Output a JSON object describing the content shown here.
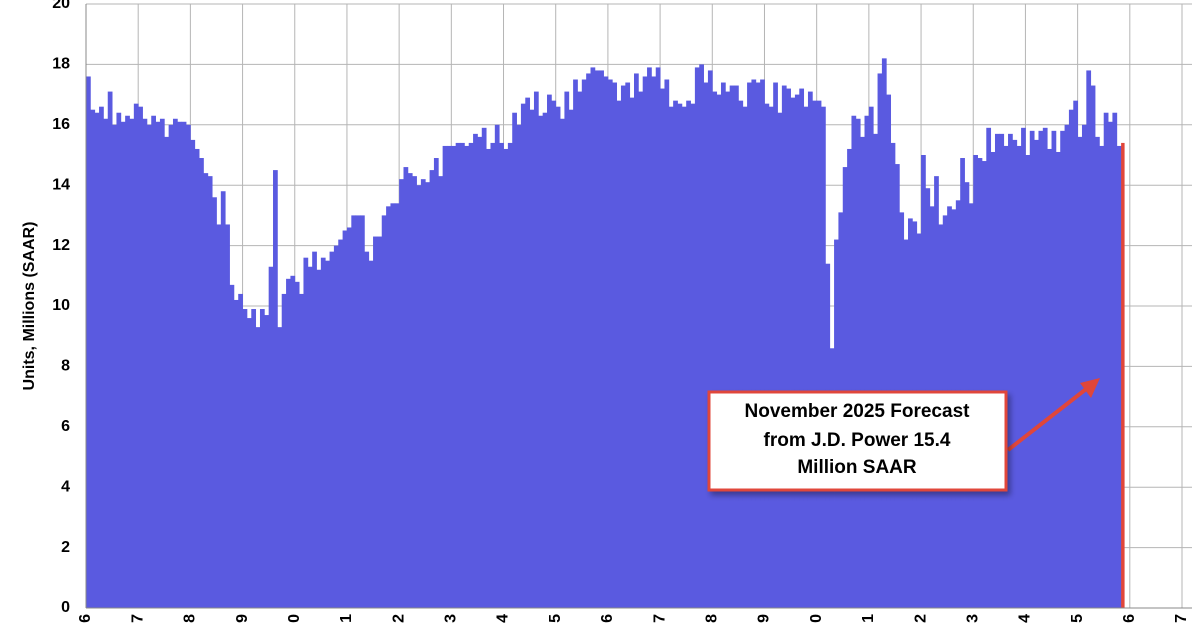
{
  "chart_data": {
    "type": "bar",
    "y_label": "Units, Millions (SAAR)",
    "annotation": [
      "November 2025 Forecast",
      "from J.D. Power 15.4",
      "Million SAAR"
    ],
    "categories": [
      "6",
      null,
      null,
      null,
      null,
      null,
      null,
      null,
      null,
      null,
      null,
      null,
      "7",
      null,
      null,
      null,
      null,
      null,
      null,
      null,
      null,
      null,
      null,
      null,
      "8",
      null,
      null,
      null,
      null,
      null,
      null,
      null,
      null,
      null,
      null,
      null,
      "9",
      null,
      null,
      null,
      null,
      null,
      null,
      null,
      null,
      null,
      null,
      null,
      "0",
      null,
      null,
      null,
      null,
      null,
      null,
      null,
      null,
      null,
      null,
      null,
      "1",
      null,
      null,
      null,
      null,
      null,
      null,
      null,
      null,
      null,
      null,
      null,
      "2",
      null,
      null,
      null,
      null,
      null,
      null,
      null,
      null,
      null,
      null,
      null,
      "3",
      null,
      null,
      null,
      null,
      null,
      null,
      null,
      null,
      null,
      null,
      null,
      "4",
      null,
      null,
      null,
      null,
      null,
      null,
      null,
      null,
      null,
      null,
      null,
      "5",
      null,
      null,
      null,
      null,
      null,
      null,
      null,
      null,
      null,
      null,
      null,
      "6",
      null,
      null,
      null,
      null,
      null,
      null,
      null,
      null,
      null,
      null,
      null,
      "7",
      null,
      null,
      null,
      null,
      null,
      null,
      null,
      null,
      null,
      null,
      null,
      "8",
      null,
      null,
      null,
      null,
      null,
      null,
      null,
      null,
      null,
      null,
      null,
      "9",
      null,
      null,
      null,
      null,
      null,
      null,
      null,
      null,
      null,
      null,
      null,
      "0",
      null,
      null,
      null,
      null,
      null,
      null,
      null,
      null,
      null,
      null,
      null,
      "1",
      null,
      null,
      null,
      null,
      null,
      null,
      null,
      null,
      null,
      null,
      null,
      "2",
      null,
      null,
      null,
      null,
      null,
      null,
      null,
      null,
      null,
      null,
      null,
      "3",
      null,
      null,
      null,
      null,
      null,
      null,
      null,
      null,
      null,
      null,
      null,
      "4",
      null,
      null,
      null,
      null,
      null,
      null,
      null,
      null,
      null,
      null,
      null,
      "5",
      null,
      null,
      null,
      null,
      null,
      null,
      null,
      null,
      null,
      null,
      null,
      "6",
      null,
      null,
      null,
      null,
      null,
      null,
      null,
      null,
      null,
      null,
      null,
      "7"
    ],
    "values": [
      17.6,
      16.5,
      16.4,
      16.6,
      16.2,
      17.1,
      16.0,
      16.4,
      16.1,
      16.3,
      16.2,
      16.7,
      16.6,
      16.2,
      16.0,
      16.3,
      16.1,
      16.2,
      15.6,
      16.0,
      16.2,
      16.1,
      16.1,
      16.0,
      15.5,
      15.2,
      14.9,
      14.4,
      14.3,
      13.6,
      12.7,
      13.8,
      12.7,
      10.7,
      10.2,
      10.4,
      9.9,
      9.6,
      9.9,
      9.3,
      9.9,
      9.7,
      11.3,
      14.5,
      9.3,
      10.4,
      10.9,
      11.0,
      10.8,
      10.4,
      11.6,
      11.3,
      11.8,
      11.2,
      11.6,
      11.5,
      11.8,
      12.0,
      12.2,
      12.5,
      12.6,
      13.0,
      13.0,
      13.0,
      11.8,
      11.5,
      12.3,
      12.3,
      13.0,
      13.3,
      13.4,
      13.4,
      14.2,
      14.6,
      14.4,
      14.3,
      14.0,
      14.2,
      14.1,
      14.5,
      14.9,
      14.3,
      15.3,
      15.3,
      15.3,
      15.4,
      15.4,
      15.3,
      15.4,
      15.7,
      15.6,
      15.9,
      15.2,
      15.4,
      16.0,
      15.4,
      15.2,
      15.4,
      16.4,
      16.0,
      16.7,
      16.9,
      16.5,
      17.1,
      16.3,
      16.4,
      17.0,
      16.8,
      16.6,
      16.2,
      17.1,
      16.5,
      17.5,
      17.1,
      17.5,
      17.7,
      17.9,
      17.8,
      17.8,
      17.6,
      17.5,
      17.4,
      16.8,
      17.3,
      17.4,
      16.9,
      17.7,
      17.1,
      17.6,
      17.9,
      17.6,
      17.9,
      17.2,
      17.5,
      16.6,
      16.8,
      16.7,
      16.6,
      16.8,
      16.7,
      17.9,
      18.0,
      17.4,
      17.8,
      17.1,
      17.0,
      17.4,
      17.1,
      17.3,
      17.3,
      16.8,
      16.6,
      17.4,
      17.5,
      17.4,
      17.5,
      16.7,
      16.6,
      17.4,
      16.4,
      17.3,
      17.2,
      16.9,
      17.0,
      17.2,
      16.6,
      17.1,
      16.8,
      16.8,
      16.6,
      11.4,
      8.6,
      12.2,
      13.1,
      14.6,
      15.2,
      16.3,
      16.2,
      15.6,
      16.3,
      16.6,
      15.7,
      17.7,
      18.2,
      17.0,
      15.4,
      14.7,
      13.1,
      12.2,
      12.9,
      12.8,
      12.4,
      15.0,
      13.9,
      13.3,
      14.3,
      12.7,
      13.0,
      13.3,
      13.2,
      13.5,
      14.9,
      14.1,
      13.4,
      15.0,
      14.9,
      14.8,
      15.9,
      15.1,
      15.7,
      15.7,
      15.3,
      15.7,
      15.5,
      15.3,
      15.9,
      15.0,
      15.8,
      15.5,
      15.8,
      15.9,
      15.2,
      15.8,
      15.1,
      15.8,
      16.0,
      16.5,
      16.8,
      15.6,
      16.0,
      17.8,
      17.3,
      15.6,
      15.3,
      16.4,
      16.1,
      16.4,
      15.3,
      15.4,
      null,
      null,
      null,
      null,
      null,
      null,
      null,
      null,
      null,
      null,
      null,
      null,
      null,
      null
    ],
    "color": "#5a5ae0",
    "last_color": "#e0463a",
    "ylim": [
      0,
      20
    ],
    "yticks": [
      0,
      2,
      4,
      6,
      8,
      10,
      12,
      14,
      16,
      18,
      20
    ],
    "grid": true
  }
}
